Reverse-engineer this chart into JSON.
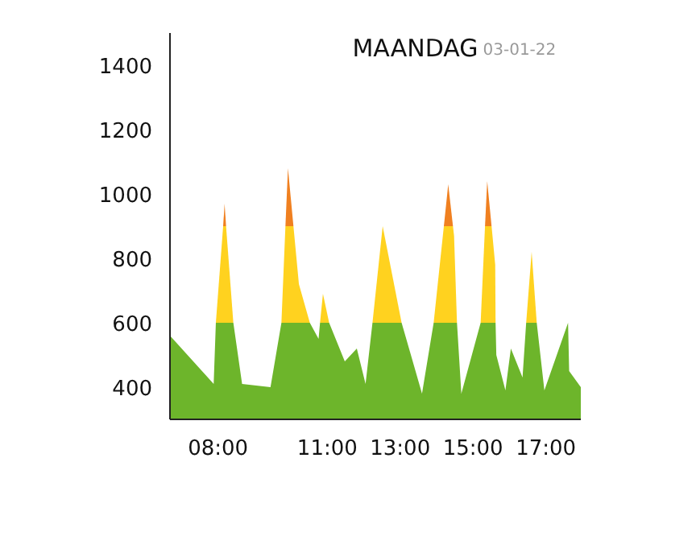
{
  "chart_data": {
    "type": "area",
    "title": "MAANDAG",
    "subtitle": "03-01-22",
    "x": [
      6.68,
      7.88,
      7.94,
      8.14,
      8.18,
      8.22,
      8.42,
      8.66,
      9.44,
      9.74,
      9.85,
      9.92,
      10.07,
      10.22,
      10.52,
      10.76,
      10.8,
      10.88,
      11.05,
      11.48,
      11.81,
      12.05,
      12.24,
      12.52,
      13.04,
      13.6,
      13.92,
      14.2,
      14.32,
      14.45,
      14.48,
      14.56,
      14.68,
      15.21,
      15.33,
      15.39,
      15.51,
      15.61,
      15.62,
      15.64,
      15.89,
      16.04,
      16.36,
      16.46,
      16.61,
      16.75,
      16.96,
      17.61,
      17.64,
      17.96
    ],
    "series": [
      {
        "color": "#f08020",
        "values": [
          null,
          null,
          null,
          900,
          970,
          900,
          null,
          null,
          null,
          null,
          900,
          1080,
          900,
          null,
          null,
          null,
          null,
          null,
          null,
          null,
          null,
          null,
          null,
          null,
          null,
          null,
          null,
          900,
          1030,
          900,
          null,
          null,
          null,
          null,
          900,
          1040,
          900,
          null,
          null,
          null,
          null,
          null,
          null,
          null,
          null,
          null,
          null,
          null,
          null,
          null
        ]
      },
      {
        "color": "#ffd21f",
        "values": [
          null,
          null,
          600,
          900,
          900,
          900,
          600,
          null,
          null,
          600,
          900,
          900,
          900,
          720,
          600,
          null,
          600,
          690,
          600,
          null,
          null,
          null,
          600,
          900,
          600,
          null,
          600,
          900,
          900,
          900,
          870,
          600,
          null,
          600,
          900,
          900,
          900,
          780,
          600,
          null,
          null,
          null,
          null,
          600,
          820,
          600,
          null,
          null,
          null,
          null
        ]
      },
      {
        "color": "#6db52b",
        "values": [
          560,
          410,
          600,
          600,
          600,
          600,
          600,
          410,
          400,
          600,
          600,
          600,
          600,
          600,
          600,
          550,
          600,
          600,
          600,
          480,
          520,
          410,
          600,
          600,
          600,
          380,
          600,
          600,
          600,
          600,
          600,
          600,
          380,
          600,
          600,
          600,
          600,
          600,
          600,
          500,
          390,
          520,
          430,
          600,
          600,
          600,
          390,
          600,
          450,
          400
        ]
      }
    ],
    "xlim": [
      6.68,
      17.96
    ],
    "ylim": [
      300,
      1500
    ],
    "xticks": [
      {
        "value": 8,
        "label": "08:00"
      },
      {
        "value": 11,
        "label": "11:00"
      },
      {
        "value": 13,
        "label": "13:00"
      },
      {
        "value": 15,
        "label": "15:00"
      },
      {
        "value": 17,
        "label": "17:00"
      }
    ],
    "yticks": [
      400,
      600,
      800,
      1000,
      1200,
      1400
    ]
  }
}
